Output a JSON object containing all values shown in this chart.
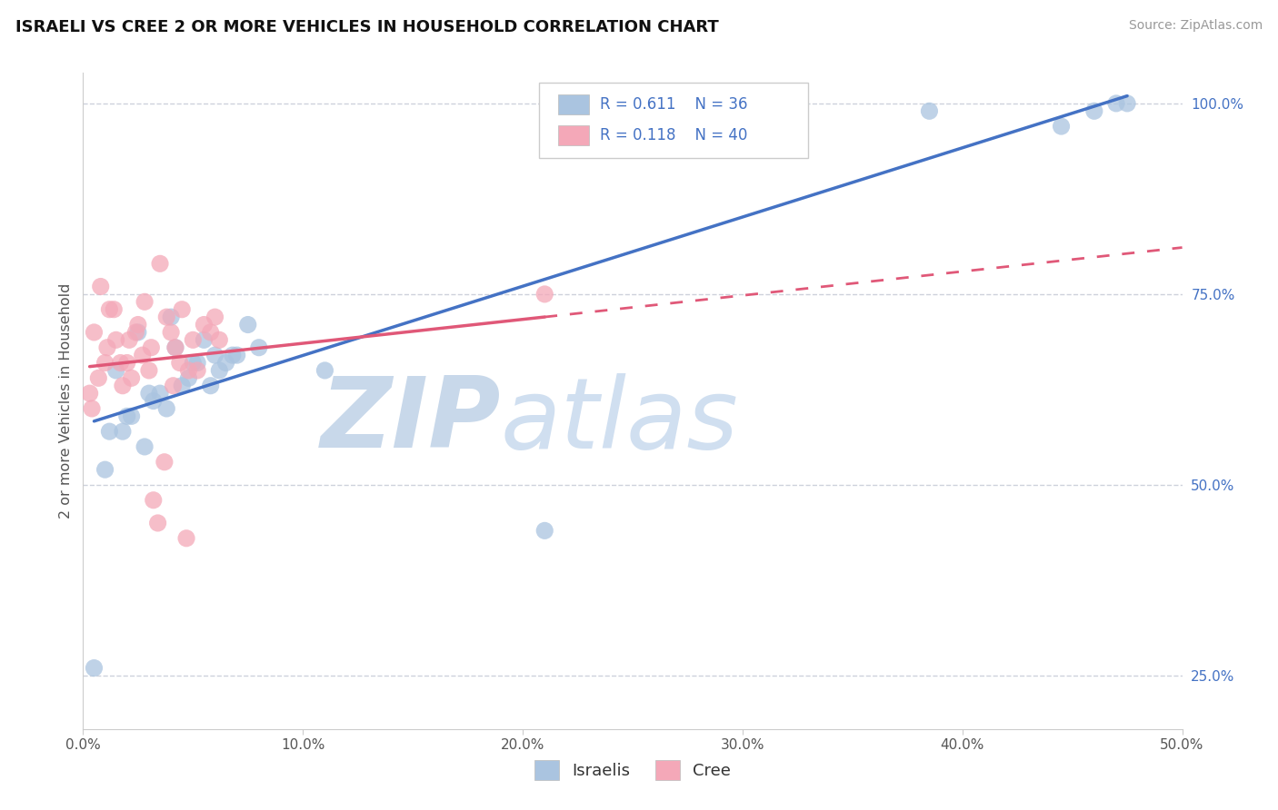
{
  "title": "ISRAELI VS CREE 2 OR MORE VEHICLES IN HOUSEHOLD CORRELATION CHART",
  "source_text": "Source: ZipAtlas.com",
  "ylabel": "2 or more Vehicles in Household",
  "xlim": [
    0.0,
    50.0
  ],
  "ylim": [
    18.0,
    104.0
  ],
  "yticks_right": [
    25.0,
    50.0,
    75.0,
    100.0
  ],
  "ytick_labels_right": [
    "25.0%",
    "50.0%",
    "75.0%",
    "100.0%"
  ],
  "xticks": [
    0,
    10,
    20,
    30,
    40,
    50
  ],
  "xtick_labels": [
    "0.0%",
    "10.0%",
    "20.0%",
    "30.0%",
    "40.0%",
    "50.0%"
  ],
  "legend_label1": "Israelis",
  "legend_label2": "Cree",
  "color_israeli": "#aac4e0",
  "color_cree": "#f4a8b8",
  "color_line_israeli": "#4472c4",
  "color_line_cree": "#e05878",
  "color_dashed": "#c8ccd8",
  "color_title": "#111111",
  "color_source": "#999999",
  "color_legend_text": "#4472c4",
  "color_axis": "#cccccc",
  "background_color": "#ffffff",
  "watermark_color": "#dde6f0",
  "israelis_x": [
    0.5,
    1.0,
    1.2,
    1.5,
    1.8,
    2.0,
    2.2,
    2.5,
    2.8,
    3.0,
    3.2,
    3.5,
    3.8,
    4.0,
    4.2,
    4.5,
    4.8,
    5.0,
    5.2,
    5.5,
    5.8,
    6.0,
    6.2,
    6.5,
    6.8,
    7.0,
    7.5,
    8.0,
    11.0,
    21.0,
    38.5,
    44.5,
    46.0,
    47.0,
    47.5,
    28.5
  ],
  "israelis_y": [
    26.0,
    52.0,
    57.0,
    65.0,
    57.0,
    59.0,
    59.0,
    70.0,
    55.0,
    62.0,
    61.0,
    62.0,
    60.0,
    72.0,
    68.0,
    63.0,
    64.0,
    66.0,
    66.0,
    69.0,
    63.0,
    67.0,
    65.0,
    66.0,
    67.0,
    67.0,
    71.0,
    68.0,
    65.0,
    44.0,
    99.0,
    97.0,
    99.0,
    100.0,
    100.0,
    96.0
  ],
  "cree_x": [
    0.3,
    0.4,
    0.5,
    0.7,
    0.8,
    1.0,
    1.1,
    1.2,
    1.4,
    1.5,
    1.7,
    1.8,
    2.0,
    2.1,
    2.2,
    2.4,
    2.5,
    2.7,
    2.8,
    3.0,
    3.1,
    3.2,
    3.4,
    3.5,
    3.7,
    3.8,
    4.0,
    4.1,
    4.2,
    4.4,
    4.5,
    4.7,
    4.8,
    5.0,
    5.2,
    5.5,
    5.8,
    6.0,
    6.2,
    21.0
  ],
  "cree_y": [
    62.0,
    60.0,
    70.0,
    64.0,
    76.0,
    66.0,
    68.0,
    73.0,
    73.0,
    69.0,
    66.0,
    63.0,
    66.0,
    69.0,
    64.0,
    70.0,
    71.0,
    67.0,
    74.0,
    65.0,
    68.0,
    48.0,
    45.0,
    79.0,
    53.0,
    72.0,
    70.0,
    63.0,
    68.0,
    66.0,
    73.0,
    43.0,
    65.0,
    69.0,
    65.0,
    71.0,
    70.0,
    72.0,
    69.0,
    75.0
  ]
}
